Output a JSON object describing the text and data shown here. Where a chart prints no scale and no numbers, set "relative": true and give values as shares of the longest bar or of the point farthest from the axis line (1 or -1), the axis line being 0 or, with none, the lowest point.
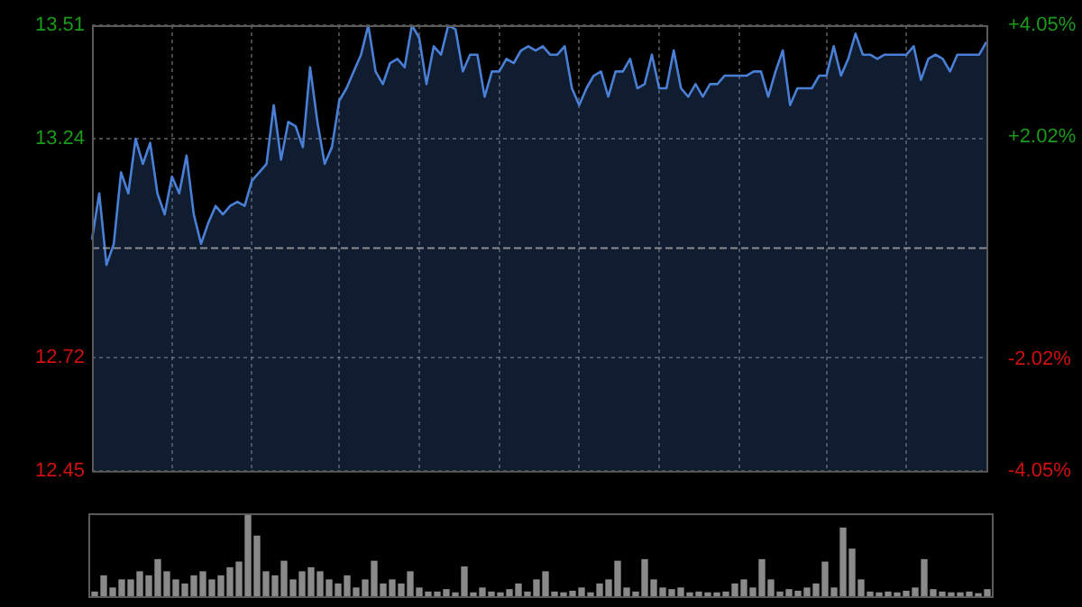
{
  "chart_data": [
    {
      "type": "area",
      "categories": [
        null,
        null,
        null,
        null,
        null,
        null,
        null,
        null,
        null,
        null,
        null,
        null,
        null,
        null,
        null,
        null,
        null,
        null,
        null,
        null,
        null,
        null,
        null,
        null,
        null,
        null,
        null,
        null,
        null,
        null,
        null,
        null,
        null,
        null,
        null,
        null,
        null,
        null,
        null,
        null,
        null,
        null,
        null,
        null,
        null,
        null,
        null,
        null,
        null,
        null,
        null,
        null,
        null,
        null,
        null,
        null,
        null,
        null,
        null,
        null,
        null,
        null,
        null,
        null,
        null,
        null,
        null,
        null,
        null,
        null,
        null,
        null,
        null,
        null,
        null,
        null,
        null,
        null,
        null,
        null,
        null,
        null,
        null,
        null,
        null,
        null,
        null,
        null,
        null,
        null,
        null,
        null,
        null,
        null,
        null,
        null,
        null,
        null,
        null,
        null,
        null,
        null,
        null,
        null,
        null,
        null,
        null,
        null,
        null,
        null,
        null,
        null,
        null,
        null,
        null,
        null,
        null,
        null,
        null,
        null,
        null,
        null,
        null,
        null
      ],
      "series": [
        {
          "color": "#4a7fd6",
          "values": [
            13.0,
            13.11,
            12.94,
            12.99,
            13.16,
            13.11,
            13.24,
            13.18,
            13.23,
            13.11,
            13.06,
            13.15,
            13.11,
            13.2,
            13.06,
            12.99,
            13.04,
            13.08,
            13.06,
            13.08,
            13.09,
            13.08,
            13.14,
            13.16,
            13.18,
            13.32,
            13.19,
            13.28,
            13.27,
            13.22,
            13.41,
            13.28,
            13.18,
            13.22,
            13.33,
            13.36,
            13.4,
            13.44,
            13.51,
            13.4,
            13.37,
            13.42,
            13.43,
            13.41,
            13.51,
            13.48,
            13.37,
            13.46,
            13.44,
            13.51,
            13.5,
            13.4,
            13.44,
            13.44,
            13.34,
            13.4,
            13.4,
            13.43,
            13.42,
            13.45,
            13.46,
            13.45,
            13.46,
            13.44,
            13.44,
            13.46,
            13.36,
            13.32,
            13.36,
            13.39,
            13.4,
            13.34,
            13.4,
            13.4,
            13.43,
            13.36,
            13.37,
            13.44,
            13.36,
            13.36,
            13.45,
            13.36,
            13.34,
            13.37,
            13.34,
            13.37,
            13.37,
            13.39,
            13.39,
            13.39,
            13.39,
            13.4,
            13.4,
            13.34,
            13.4,
            13.45,
            13.32,
            13.36,
            13.36,
            13.36,
            13.39,
            13.39,
            13.46,
            13.39,
            13.43,
            13.49,
            13.44,
            13.44,
            13.43,
            13.44,
            13.44,
            13.44,
            13.44,
            13.46,
            13.38,
            13.43,
            13.44,
            13.43,
            13.4,
            13.44,
            13.44,
            13.44,
            13.44,
            13.47
          ]
        }
      ],
      "ylim": [
        12.45,
        13.51
      ],
      "yticks": [
        13.51,
        13.24,
        12.72,
        12.45
      ],
      "y2lim": [
        -4.05,
        4.05
      ],
      "y2ticks": [
        {
          "value": 4.05,
          "label": "+4.05%"
        },
        {
          "value": 2.02,
          "label": "+2.02%"
        },
        {
          "value": -2.02,
          "label": "-2.02%"
        },
        {
          "value": -4.05,
          "label": "-4.05%"
        }
      ],
      "ref_lines": [
        {
          "axis": "y",
          "value": 12.98,
          "line_style": "dashed"
        }
      ],
      "grid": true,
      "tick_labels": "y"
    },
    {
      "type": "bar",
      "categories": [
        null,
        null,
        null,
        null,
        null,
        null,
        null,
        null,
        null,
        null,
        null,
        null,
        null,
        null,
        null,
        null,
        null,
        null,
        null,
        null,
        null,
        null,
        null,
        null,
        null,
        null,
        null,
        null,
        null,
        null,
        null,
        null,
        null,
        null,
        null,
        null,
        null,
        null,
        null,
        null,
        null,
        null,
        null,
        null,
        null,
        null,
        null,
        null,
        null,
        null,
        null,
        null,
        null,
        null,
        null,
        null,
        null,
        null,
        null,
        null,
        null,
        null,
        null,
        null,
        null,
        null,
        null,
        null,
        null,
        null,
        null,
        null,
        null,
        null,
        null,
        null,
        null,
        null,
        null,
        null,
        null,
        null,
        null,
        null,
        null,
        null,
        null,
        null,
        null,
        null,
        null,
        null,
        null,
        null,
        null,
        null,
        null,
        null,
        null,
        null
      ],
      "values": [
        0.05,
        0.25,
        0.1,
        0.2,
        0.2,
        0.3,
        0.25,
        0.45,
        0.3,
        0.2,
        0.15,
        0.25,
        0.3,
        0.2,
        0.25,
        0.35,
        0.42,
        1.0,
        0.74,
        0.3,
        0.25,
        0.43,
        0.2,
        0.3,
        0.35,
        0.3,
        0.2,
        0.15,
        0.25,
        0.1,
        0.2,
        0.43,
        0.15,
        0.2,
        0.15,
        0.3,
        0.1,
        0.05,
        0.05,
        0.08,
        0.04,
        0.36,
        0.04,
        0.1,
        0.05,
        0.04,
        0.08,
        0.15,
        0.05,
        0.2,
        0.3,
        0.05,
        0.04,
        0.06,
        0.1,
        0.04,
        0.15,
        0.2,
        0.43,
        0.1,
        0.05,
        0.45,
        0.2,
        0.1,
        0.08,
        0.1,
        0.04,
        0.05,
        0.04,
        0.04,
        0.05,
        0.15,
        0.2,
        0.1,
        0.45,
        0.2,
        0.05,
        0.08,
        0.06,
        0.1,
        0.15,
        0.42,
        0.1,
        0.84,
        0.58,
        0.2,
        0.05,
        0.04,
        0.05,
        0.04,
        0.06,
        0.1,
        0.45,
        0.08,
        0.05,
        0.04,
        0.04,
        0.05,
        0.03,
        0.08
      ],
      "color": "#8a8a8a",
      "relative": true,
      "tick_labels": false
    }
  ]
}
